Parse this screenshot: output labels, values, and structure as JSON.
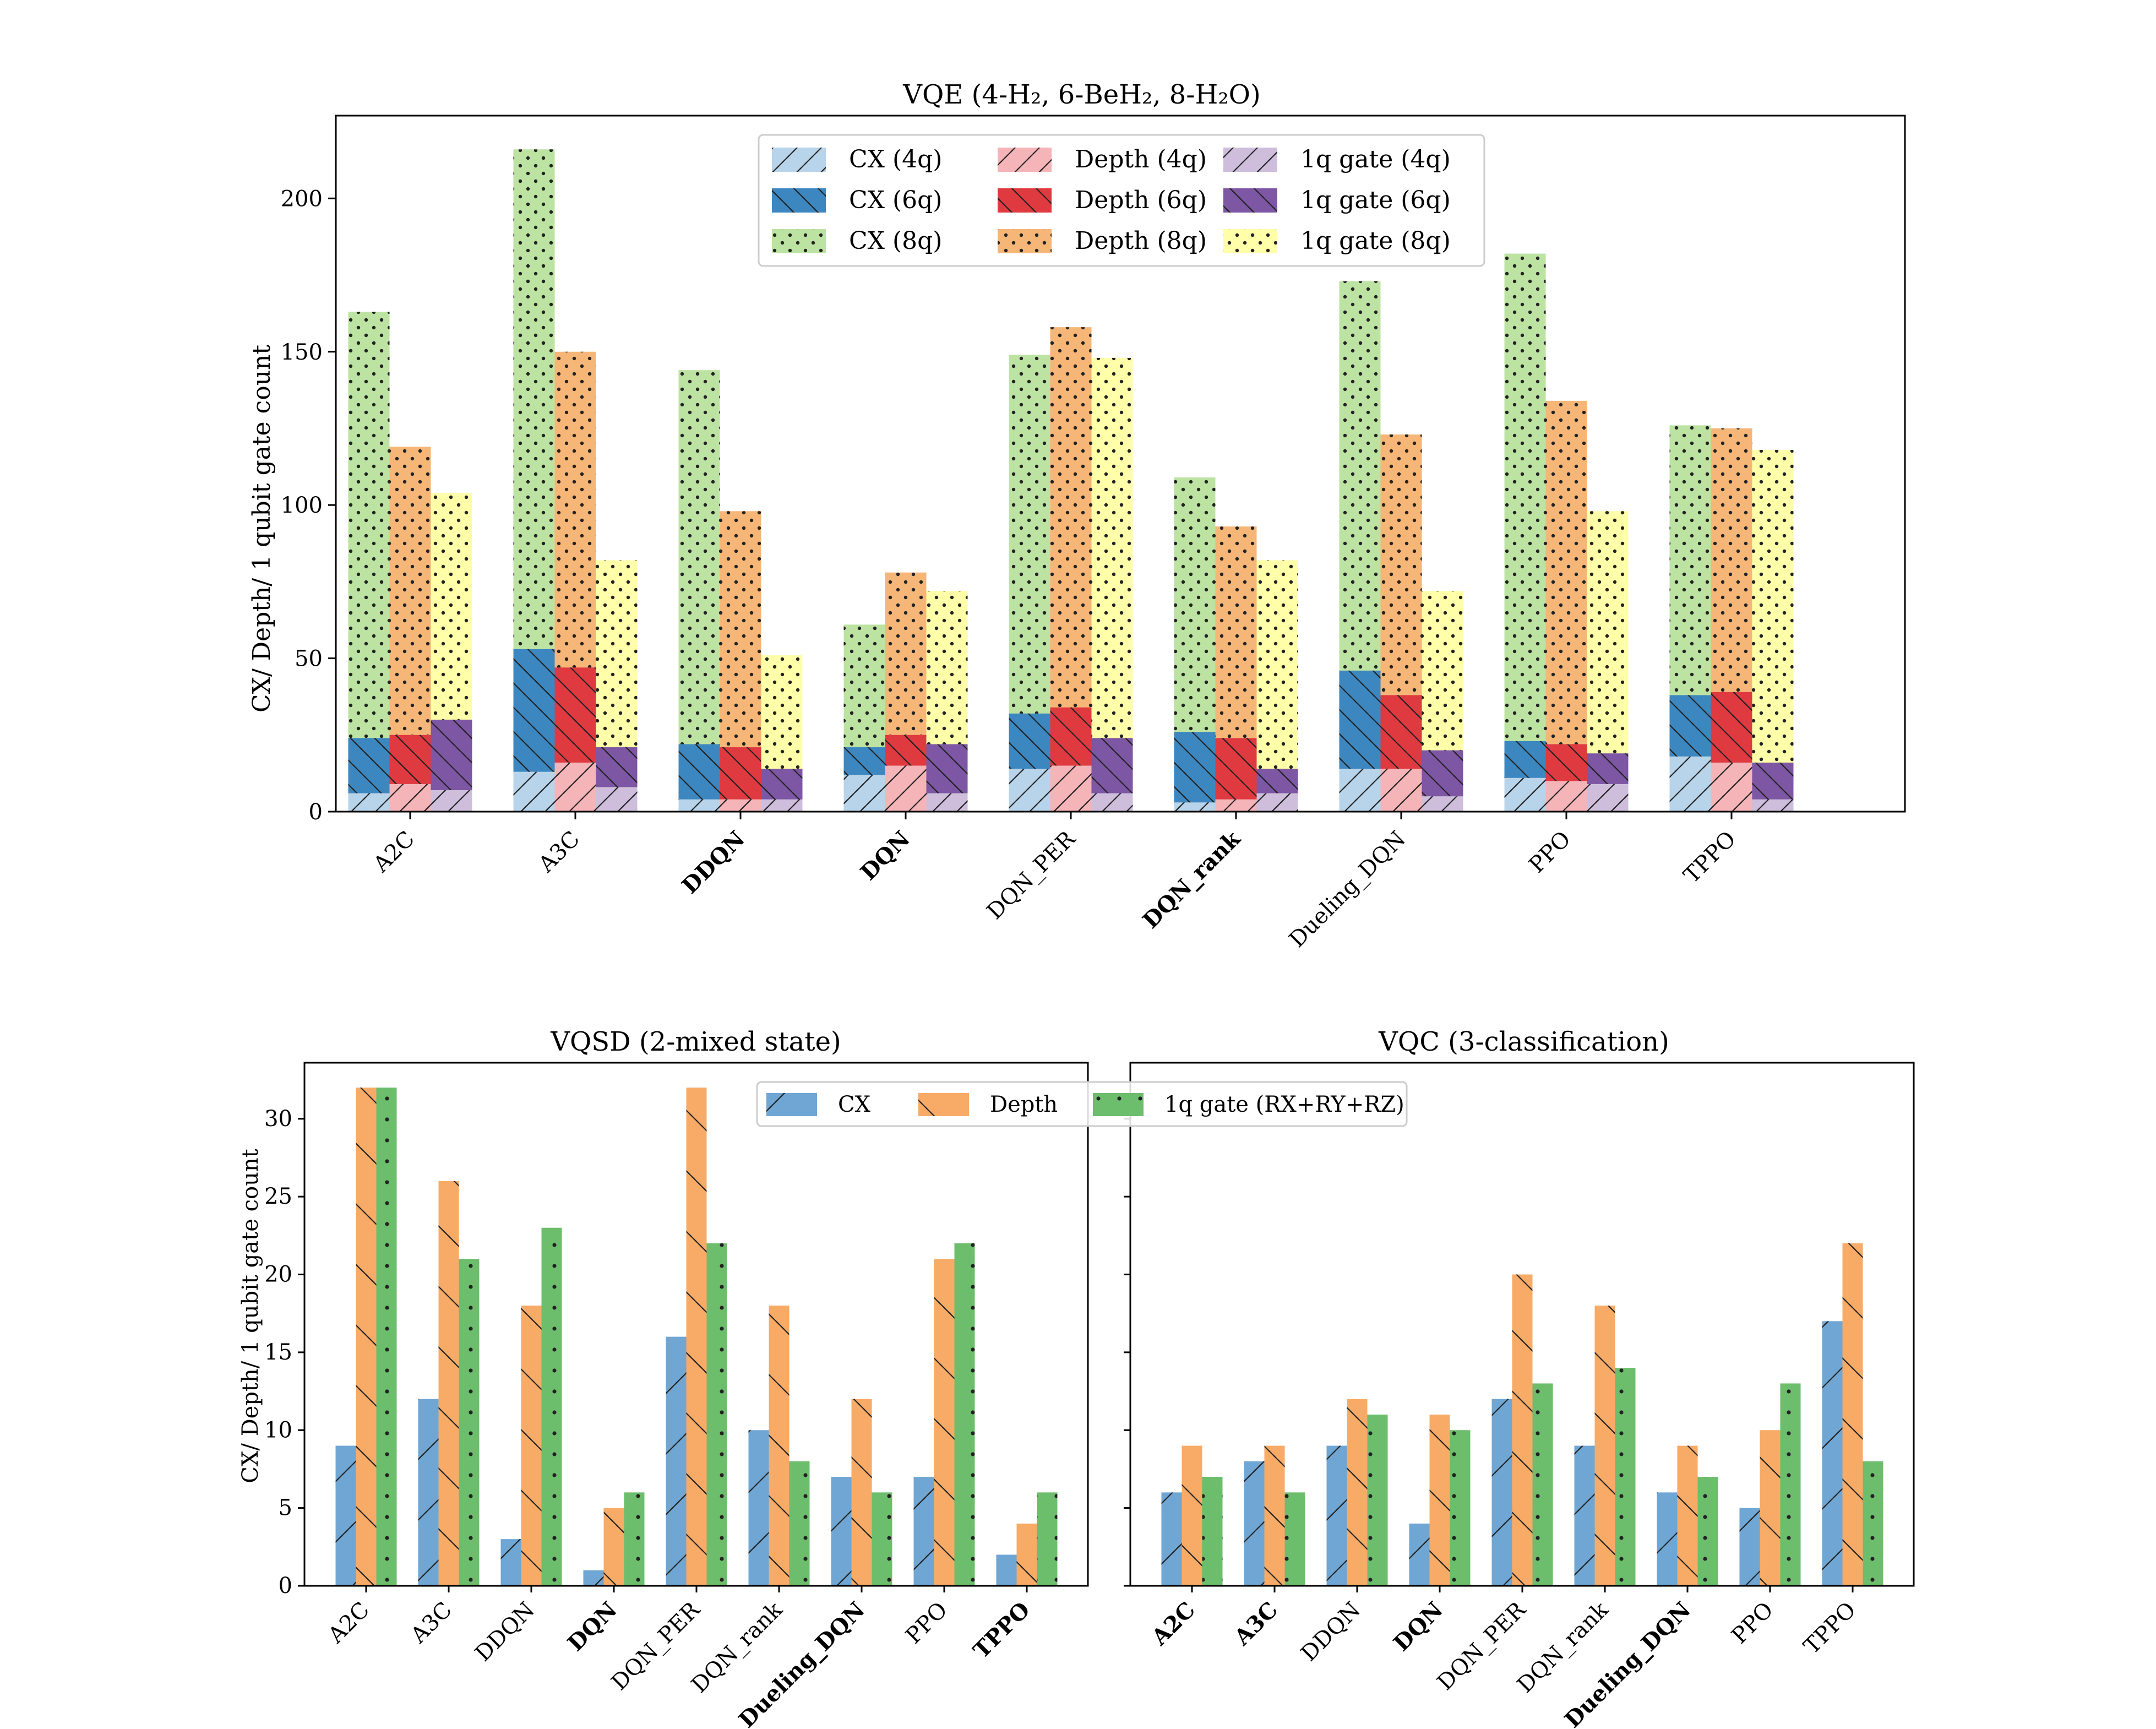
{
  "colors": {
    "cx4": "#b8d4ea",
    "cx6": "#3d87c0",
    "cx8": "#bde3a3",
    "d4": "#f5b4b8",
    "d6": "#df3a40",
    "d8": "#f6b677",
    "g4": "#cebedc",
    "g6": "#7d56a4",
    "g8": "#ffffaa",
    "cx": "#6fa6d4",
    "depth": "#f7ab66",
    "gate": "#6cbd6c"
  },
  "chart_data": [
    {
      "id": "vqe",
      "type": "bar",
      "title": "VQE (4-H₂, 6-BeH₂, 8-H₂O)",
      "ylabel": "CX/ Depth/ 1 qubit gate count",
      "xlabel": "",
      "ylim": [
        0,
        227
      ],
      "yticks": [
        0,
        50,
        100,
        150,
        200
      ],
      "categories": [
        "A2C",
        "A3C",
        "DDQN",
        "DQN",
        "DQN_PER",
        "DQN_rank",
        "Dueling_DQN",
        "PPO",
        "TPPO"
      ],
      "bold_categories": [
        "DDQN",
        "DQN",
        "DQN_rank"
      ],
      "legend_position": "top-center",
      "groups": [
        "CX",
        "Depth",
        "1q gate"
      ],
      "series": [
        {
          "name": "CX (4q)",
          "group": "CX",
          "qubits": 4,
          "values": [
            6,
            13,
            4,
            12,
            14,
            3,
            14,
            11,
            18
          ]
        },
        {
          "name": "CX (6q)",
          "group": "CX",
          "qubits": 6,
          "values": [
            24,
            53,
            22,
            21,
            32,
            26,
            46,
            23,
            38
          ]
        },
        {
          "name": "CX (8q)",
          "group": "CX",
          "qubits": 8,
          "values": [
            163,
            216,
            144,
            61,
            149,
            109,
            173,
            182,
            126
          ]
        },
        {
          "name": "Depth (4q)",
          "group": "Depth",
          "qubits": 4,
          "values": [
            9,
            16,
            4,
            15,
            15,
            4,
            14,
            10,
            16
          ]
        },
        {
          "name": "Depth (6q)",
          "group": "Depth",
          "qubits": 6,
          "values": [
            25,
            47,
            21,
            25,
            34,
            24,
            38,
            22,
            39
          ]
        },
        {
          "name": "Depth (8q)",
          "group": "Depth",
          "qubits": 8,
          "values": [
            119,
            150,
            98,
            78,
            158,
            93,
            123,
            134,
            125
          ]
        },
        {
          "name": "1q gate (4q)",
          "group": "1q gate",
          "qubits": 4,
          "values": [
            7,
            8,
            4,
            6,
            6,
            6,
            5,
            9,
            4
          ]
        },
        {
          "name": "1q gate (6q)",
          "group": "1q gate",
          "qubits": 6,
          "values": [
            30,
            21,
            14,
            22,
            24,
            14,
            20,
            19,
            16
          ]
        },
        {
          "name": "1q gate (8q)",
          "group": "1q gate",
          "qubits": 8,
          "values": [
            104,
            82,
            51,
            72,
            148,
            82,
            72,
            98,
            118
          ]
        }
      ]
    },
    {
      "id": "vqsd",
      "type": "bar",
      "title": "VQSD (2-mixed state)",
      "ylabel": "CX/ Depth/ 1 qubit gate count",
      "xlabel": "",
      "ylim": [
        0,
        33.6
      ],
      "yticks": [
        0,
        5,
        10,
        15,
        20,
        25,
        30
      ],
      "categories": [
        "A2C",
        "A3C",
        "DDQN",
        "DQN",
        "DQN_PER",
        "DQN_rank",
        "Dueling_DQN",
        "PPO",
        "TPPO"
      ],
      "bold_categories": [
        "DQN",
        "Dueling_DQN",
        "TPPO"
      ],
      "series": [
        {
          "name": "CX",
          "values": [
            9,
            12,
            3,
            1,
            16,
            10,
            7,
            7,
            2
          ]
        },
        {
          "name": "Depth",
          "values": [
            32,
            26,
            18,
            5,
            32,
            18,
            12,
            21,
            4
          ]
        },
        {
          "name": "1q gate (RX+RY+RZ)",
          "values": [
            32,
            21,
            23,
            6,
            22,
            8,
            6,
            22,
            6
          ]
        }
      ]
    },
    {
      "id": "vqc",
      "type": "bar",
      "title": "VQC (3-classification)",
      "ylabel": "",
      "xlabel": "",
      "ylim": [
        0,
        33.6
      ],
      "yticks": [
        0,
        5,
        10,
        15,
        20,
        25,
        30
      ],
      "categories": [
        "A2C",
        "A3C",
        "DDQN",
        "DQN",
        "DQN_PER",
        "DQN_rank",
        "Dueling_DQN",
        "PPO",
        "TPPO"
      ],
      "bold_categories": [
        "A2C",
        "A3C",
        "DQN",
        "Dueling_DQN"
      ],
      "series": [
        {
          "name": "CX",
          "values": [
            6,
            8,
            9,
            4,
            12,
            9,
            6,
            5,
            17
          ]
        },
        {
          "name": "Depth",
          "values": [
            9,
            9,
            12,
            11,
            20,
            18,
            9,
            10,
            22
          ]
        },
        {
          "name": "1q gate (RX+RY+RZ)",
          "values": [
            7,
            6,
            11,
            10,
            13,
            14,
            7,
            13,
            8
          ]
        }
      ]
    }
  ],
  "bottom_legend": [
    "CX",
    "Depth",
    "1q gate (RX+RY+RZ)"
  ],
  "legend_position_bottom": "top-center"
}
